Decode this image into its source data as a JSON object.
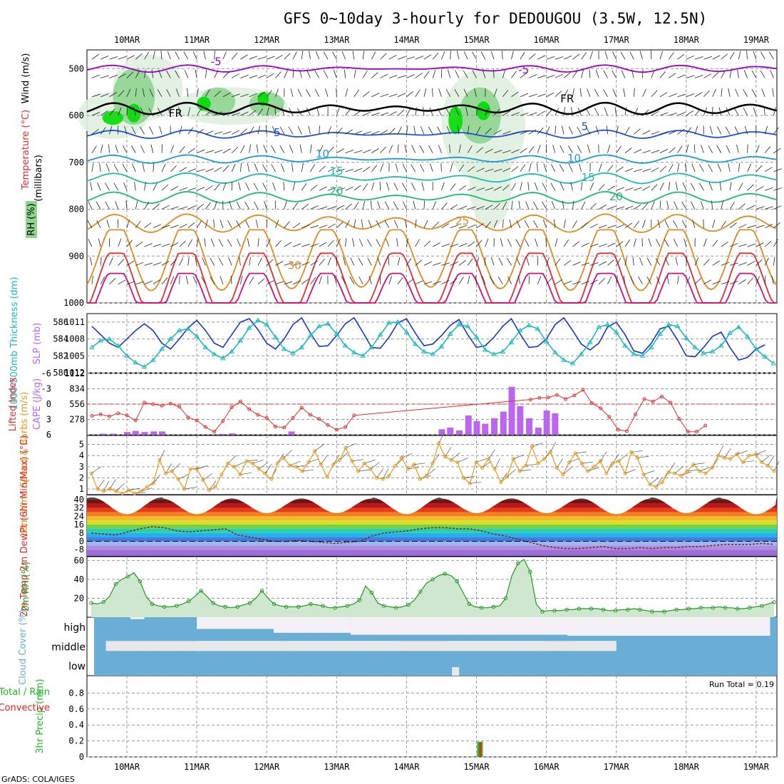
{
  "title": "GFS 0~10day 3-hourly for DEDOUGOU (3.5W, 12.5N)",
  "footer": "GrADS: COLA/IGES",
  "run_total": "Run Total = 0.19",
  "colors": {
    "rh_green": "#00dd00",
    "rh_mid": "#8fd48f",
    "rh_light": "#dff0df",
    "temp_purple": "#9900cc",
    "temp_blue": "#1f4fd6",
    "temp_light_blue": "#1f9ad6",
    "temp_teal": "#22b8b0",
    "temp_green": "#22b870",
    "temp_orange": "#e08a20",
    "temp_red": "#e03030",
    "temp_magenta": "#d0107a",
    "slp_blue": "#1838c8",
    "thickness_cyan": "#22b8c0",
    "lifted_red": "#e03030",
    "cape_purple": "#bb66ee",
    "wind_orange": "#e89a20",
    "rh2m_green": "#229922",
    "cloud_blue": "#6aaed6",
    "cloud_gap": "#e8e8e8",
    "precip_green": "#22bb22",
    "precip_red": "#ee2222"
  },
  "chart_data": [
    {
      "type": "heatmap",
      "id": "upper-air",
      "xlabels": [
        "10MAR",
        "11MAR",
        "12MAR",
        "13MAR",
        "14MAR",
        "15MAR",
        "16MAR",
        "17MAR",
        "18MAR",
        "19MAR"
      ],
      "ylabel": "(millibars)",
      "ytick_labels": [
        "500",
        "600",
        "700",
        "800",
        "900",
        "1000"
      ],
      "ylim": [
        460,
        1000
      ],
      "legend_rh": "RH (%)",
      "label_temperature": "Temperature (°C)",
      "label_wind": "Wind (m/s)",
      "contour_labels": [
        {
          "text": "-5",
          "day": 1.2,
          "p": 493,
          "color": "temp_purple"
        },
        {
          "text": "-5",
          "day": 5.6,
          "p": 510,
          "color": "temp_purple"
        },
        {
          "text": "FR",
          "day": 0.6,
          "p": 603,
          "color": "black"
        },
        {
          "text": "FR",
          "day": 6.2,
          "p": 572,
          "color": "black"
        },
        {
          "text": "5",
          "day": 2.1,
          "p": 644,
          "color": "temp_blue"
        },
        {
          "text": "5",
          "day": 6.5,
          "p": 631,
          "color": "temp_blue"
        },
        {
          "text": "10",
          "day": 2.7,
          "p": 690,
          "color": "temp_light_blue"
        },
        {
          "text": "10",
          "day": 6.3,
          "p": 699,
          "color": "temp_light_blue"
        },
        {
          "text": "15",
          "day": 2.9,
          "p": 726,
          "color": "temp_teal"
        },
        {
          "text": "15",
          "day": 6.5,
          "p": 740,
          "color": "temp_teal"
        },
        {
          "text": "20",
          "day": 2.9,
          "p": 769,
          "color": "temp_green"
        },
        {
          "text": "20",
          "day": 6.9,
          "p": 781,
          "color": "temp_green"
        },
        {
          "text": "25",
          "day": 4.7,
          "p": 833,
          "color": "temp_orange"
        },
        {
          "text": "30",
          "day": 2.3,
          "p": 928,
          "color": "temp_orange"
        }
      ],
      "isotherms": [
        {
          "value": -5,
          "color": "temp_purple",
          "base": 500,
          "amp": 6
        },
        {
          "value": 0,
          "color": "black",
          "base": 585,
          "amp": 14
        },
        {
          "value": 5,
          "color": "temp_blue",
          "base": 640,
          "amp": 8
        },
        {
          "value": 10,
          "color": "temp_light_blue",
          "base": 693,
          "amp": 8
        },
        {
          "value": 15,
          "color": "temp_teal",
          "base": 734,
          "amp": 12
        },
        {
          "value": 20,
          "color": "temp_green",
          "base": 775,
          "amp": 14
        },
        {
          "value": 25,
          "color": "temp_orange",
          "base": 830,
          "amp": 26
        },
        {
          "value": 30,
          "color": "temp_orange",
          "base": 900,
          "amp": 70
        },
        {
          "value": 35,
          "color": "temp_red",
          "base": 950,
          "amp": 70
        },
        {
          "value": 40,
          "color": "temp_magenta",
          "base": 985,
          "amp": 60
        }
      ]
    },
    {
      "type": "line",
      "id": "slp-thickness",
      "ylabel_left": "1000-500mb Thickness (dm)",
      "ylabel_right": "SLP (mb)",
      "yticks_left": [
        "586",
        "584",
        "582",
        "580"
      ],
      "yticks_right": [
        "1011",
        "1008",
        "1005",
        "1012"
      ],
      "ylim": [
        580,
        587
      ],
      "series": [
        {
          "name": "SLP (mb)",
          "color": "slp_blue",
          "values": [
            585.5,
            584.5,
            583.5,
            583,
            584,
            585,
            585.8,
            585,
            583.5,
            582.8,
            584,
            585.3,
            586.2,
            585,
            583.5,
            583,
            584.5,
            586,
            586.4,
            585.1,
            583.5,
            582.8,
            584,
            585.7,
            586.5,
            584.7,
            583.1,
            583.2,
            584.4,
            585.8,
            586.5,
            584.8,
            583,
            582.9,
            584.2,
            585.9,
            586.4,
            584.7,
            583.2,
            583.4,
            584.4,
            585.6,
            586.3,
            584.5,
            583,
            583.2,
            584.2,
            585.5,
            586.4,
            584.6,
            583,
            583.1,
            584,
            585.7,
            586.5,
            585,
            583.4,
            582.7,
            583.5,
            585.4,
            586,
            584.5,
            582.6,
            582.3,
            583.5,
            585.2,
            585.5,
            583.9,
            582,
            581.9,
            583,
            584.3,
            584.8,
            583,
            581.5,
            581.8,
            582.8,
            583.3
          ]
        },
        {
          "name": "1000-500mb Thickness (dm)",
          "color": "thickness_cyan",
          "values": [
            583,
            583.8,
            584,
            583.2,
            582,
            581.2,
            580.7,
            581.5,
            582.8,
            584,
            585,
            585.2,
            584.3,
            583,
            582.2,
            581.7,
            582.5,
            583.8,
            585.3,
            586.2,
            585.7,
            584.2,
            582.8,
            582.3,
            583,
            584.4,
            585.5,
            585.8,
            584.6,
            583.2,
            582.4,
            582,
            583,
            584.5,
            585.9,
            586,
            584.8,
            583.4,
            582.5,
            582.2,
            583.1,
            584.6,
            585.7,
            585.5,
            584.2,
            582.7,
            582.2,
            582.5,
            583.6,
            585,
            585.6,
            585.2,
            583.7,
            582.4,
            581.5,
            581.1,
            582.2,
            583.6,
            585.4,
            585.7,
            584.8,
            583.2,
            582.2,
            582,
            583,
            584.6,
            585.7,
            585.5,
            584.1,
            583,
            582.3,
            582.5,
            583.2,
            584.7,
            585.4,
            584.3,
            582.8,
            581.9,
            581.1
          ]
        }
      ]
    },
    {
      "type": "bar",
      "id": "lifted-cape",
      "ylabel_left": "Lifted Index",
      "ylabel_right": "CAPE (J/kg)",
      "yticks_left": [
        "-6",
        "-3",
        "0",
        "3",
        "6"
      ],
      "yticks_right": [
        "1112",
        "834",
        "556",
        "278",
        ""
      ],
      "cape_values": [
        0,
        20,
        20,
        0,
        0,
        0,
        0,
        0,
        0,
        0,
        60,
        70,
        50,
        60,
        60,
        0,
        0,
        0,
        0,
        0,
        0,
        0,
        0,
        0,
        0,
        0,
        15,
        25,
        0,
        0,
        0,
        0,
        0,
        0,
        0,
        0,
        0,
        0,
        0,
        60,
        0,
        0,
        0,
        0,
        0,
        0,
        0,
        0,
        0,
        0,
        0,
        0,
        0,
        0,
        0,
        0,
        0,
        0,
        0,
        0,
        0,
        0,
        0,
        0,
        0,
        0,
        0,
        0,
        0,
        0,
        0,
        0,
        0,
        0,
        0,
        0,
        0,
        0,
        0,
        0,
        0,
        0,
        0,
        0,
        0,
        0,
        0,
        0,
        0,
        0,
        0,
        0,
        0,
        0,
        0,
        0,
        0,
        0,
        0,
        0,
        0,
        0,
        0,
        0,
        0,
        0,
        0,
        0,
        0,
        0,
        0,
        0,
        0,
        0,
        0,
        0,
        0,
        0,
        0,
        0,
        0,
        0,
        0,
        0,
        0,
        0,
        0,
        0,
        0,
        0,
        0,
        0,
        0,
        0,
        0,
        0,
        0,
        0,
        0,
        0,
        0,
        0,
        0,
        0,
        0,
        0,
        0,
        0,
        0,
        0,
        0,
        0,
        0,
        0,
        0,
        0
      ],
      "cape_bars": [
        {
          "day": -0.35,
          "cape": 20
        },
        {
          "day": -0.2,
          "cape": 20
        },
        {
          "day": 0.0,
          "cape": 50
        },
        {
          "day": 0.12,
          "cape": 70
        },
        {
          "day": 0.25,
          "cape": 50
        },
        {
          "day": 0.38,
          "cape": 60
        },
        {
          "day": 0.5,
          "cape": 60
        },
        {
          "day": 1.35,
          "cape": 15
        },
        {
          "day": 1.5,
          "cape": 25
        },
        {
          "day": 2.35,
          "cape": 60
        },
        {
          "day": 4.5,
          "cape": 100
        },
        {
          "day": 4.62,
          "cape": 130
        },
        {
          "day": 4.75,
          "cape": 80
        },
        {
          "day": 4.88,
          "cape": 350
        },
        {
          "day": 5.0,
          "cape": 250
        },
        {
          "day": 5.12,
          "cape": 200
        },
        {
          "day": 5.25,
          "cape": 300
        },
        {
          "day": 5.38,
          "cape": 420
        },
        {
          "day": 5.5,
          "cape": 870
        },
        {
          "day": 5.62,
          "cape": 520
        },
        {
          "day": 5.75,
          "cape": 300
        },
        {
          "day": 5.88,
          "cape": 130
        },
        {
          "day": 6.0,
          "cape": 440
        },
        {
          "day": 6.12,
          "cape": 390
        }
      ],
      "lifted_index": [
        2.3,
        2.0,
        2.4,
        1.8,
        2.2,
        3.2,
        -0.3,
        0.0,
        0.3,
        -0.1,
        0.5,
        2.6,
        3.2,
        4.5,
        5.4,
        3.3,
        0.6,
        -0.5,
        1.0,
        2.1,
        2.7,
        4.4,
        4.6,
        2.7,
        0.7,
        2.1,
        2.9,
        4.1,
        5.0,
        4.5,
        2.2,
        -0.9,
        -1.2,
        -1.3,
        -1.8,
        -1.0,
        -1.7,
        -2.8,
        -0.2,
        0.8,
        2.5,
        5.0,
        5.3,
        2.0,
        -1.0,
        -0.5,
        -1.5,
        -0.3,
        2.9,
        5.4,
        5.4,
        4.2
      ]
    },
    {
      "type": "line",
      "id": "wind10m",
      "ylabel": "10m Wind Speed & Barbs (m/s)",
      "yticks": [
        "1",
        "2",
        "3",
        "4",
        "5"
      ],
      "ylim": [
        0.5,
        5.8
      ],
      "series": [
        {
          "name": "10m Wind Speed",
          "color": "wind_orange",
          "values": [
            2.4,
            1.0,
            0.8,
            1.0,
            0.8,
            0.6,
            0.9,
            0.6,
            0.8,
            1.2,
            1.5,
            3.6,
            2.4,
            2.6,
            1.9,
            1.0,
            2.8,
            2.8,
            1.8,
            0.9,
            1.2,
            2.3,
            3.3,
            3.0,
            2.3,
            3.5,
            3.3,
            2.8,
            2.4,
            1.9,
            3.3,
            3.8,
            3.1,
            3.0,
            2.6,
            3.4,
            4.4,
            3.2,
            2.1,
            3.2,
            3.6,
            4.7,
            3.5,
            2.6,
            3.3,
            2.8,
            2.0,
            1.9,
            2.2,
            3.1,
            3.8,
            2.8,
            3.2,
            1.9,
            2.2,
            3.3,
            5.1,
            3.9,
            3.6,
            3.4,
            2.0,
            1.5,
            3.4,
            2.9,
            3.7,
            2.8,
            1.6,
            2.1,
            3.7,
            2.6,
            3.1,
            4.8,
            3.3,
            3.7,
            4.3,
            2.9,
            2.3,
            3.4,
            4.2,
            3.3,
            2.6,
            3.0,
            3.5,
            2.4,
            3.3,
            3.5,
            2.4,
            4.3,
            3.8,
            2.3,
            1.4,
            1.2,
            1.6,
            2.5,
            2.4,
            2.2,
            2.6,
            3.2,
            2.6,
            2.4,
            2.9,
            4.0,
            3.8,
            3.7,
            4.1,
            3.4,
            4.0,
            4.1,
            3.4,
            3.1,
            2.6
          ]
        }
      ]
    },
    {
      "type": "area",
      "id": "temp2m",
      "ylabel": "2m Temp 2m DewPt (6hr Min/Max) (°C)",
      "yticks": [
        "40",
        "32",
        "24",
        "16",
        "8",
        "0",
        "-8"
      ],
      "ylim": [
        -14,
        44
      ],
      "temp_max_by_day": [
        42,
        41,
        41,
        41,
        42,
        41,
        41,
        41,
        42,
        41
      ],
      "temp_min_by_day": [
        26,
        26,
        27,
        27,
        26,
        27,
        27,
        26,
        27,
        26
      ],
      "dewpoint": [
        8,
        7,
        6,
        9,
        12,
        14,
        13,
        10,
        9,
        10,
        11,
        12,
        6,
        4,
        2,
        0,
        0,
        1,
        0,
        -1,
        -2,
        -1,
        0,
        5,
        8,
        9,
        10,
        12,
        13,
        13,
        12,
        12,
        10,
        7,
        5,
        2,
        -1,
        -4,
        -6,
        -7,
        -7,
        -6,
        -5,
        -7,
        -7,
        -6,
        -7,
        -6,
        -6,
        -5,
        -5,
        -4,
        -3,
        -3,
        -3,
        -2,
        -3
      ]
    },
    {
      "type": "area",
      "id": "rh2m",
      "ylabel": "2m RH (%)",
      "yticks": [
        "20",
        "40",
        "60"
      ],
      "ylim": [
        0,
        64
      ],
      "series": [
        {
          "name": "2m RH",
          "color": "rh2m_green",
          "values": [
            15,
            14,
            16,
            22,
            35,
            40,
            43,
            47,
            38,
            22,
            14,
            12,
            11,
            11,
            12,
            14,
            17,
            22,
            28,
            22,
            15,
            12,
            11,
            10,
            11,
            13,
            15,
            20,
            28,
            20,
            14,
            12,
            11,
            11,
            11,
            12,
            14,
            13,
            12,
            10,
            10,
            11,
            12,
            14,
            18,
            33,
            26,
            15,
            12,
            11,
            10,
            11,
            13,
            18,
            27,
            36,
            40,
            44,
            46,
            44,
            38,
            26,
            14,
            11,
            10,
            10,
            11,
            12,
            20,
            44,
            57,
            61,
            48,
            14,
            6,
            7,
            7,
            7,
            8,
            8,
            9,
            9,
            9,
            9,
            8,
            7,
            7,
            8,
            8,
            9,
            8,
            7,
            6,
            6,
            6,
            7,
            8,
            8,
            9,
            9,
            10,
            10,
            10,
            11,
            10,
            10,
            9,
            9,
            10,
            11,
            12,
            14,
            16
          ]
        }
      ]
    },
    {
      "type": "heatmap",
      "id": "cloud-cover",
      "ylabel": "Cloud Cover (%)",
      "levels": [
        "high",
        "middle",
        "low"
      ]
    },
    {
      "type": "bar",
      "id": "precip",
      "ylabel_left": "Total / Rain Convective",
      "ylabel_right": "3hr Precip (mm)",
      "yticks": [
        "0",
        "0.2",
        "0.4",
        "0.6",
        "0.8"
      ],
      "ylim": [
        0,
        1.0
      ],
      "bars": [
        {
          "day": 5.05,
          "total": 0.19,
          "convective": 0.18
        }
      ]
    }
  ]
}
